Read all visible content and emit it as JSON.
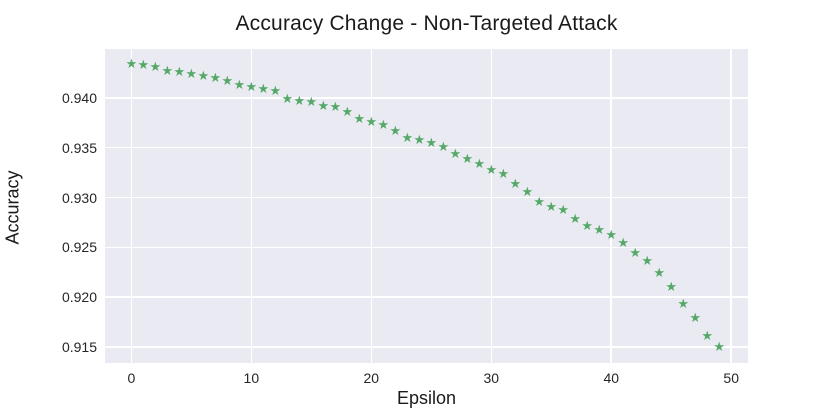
{
  "chart_data": {
    "type": "scatter",
    "title": "Accuracy Change - Non-Targeted Attack",
    "xlabel": "Epsilon",
    "ylabel": "Accuracy",
    "marker": "star",
    "marker_color": "#55a868",
    "plot_background_color": "#eaeaf2",
    "grid_color": "#ffffff",
    "grid": true,
    "legend": false,
    "xlim": [
      -2.2,
      51.4
    ],
    "ylim": [
      0.9134,
      0.9449
    ],
    "x_tick_values": [
      0,
      10,
      20,
      30,
      40,
      50
    ],
    "x_tick_labels": [
      "0",
      "10",
      "20",
      "30",
      "40",
      "50"
    ],
    "y_tick_values": [
      0.915,
      0.92,
      0.925,
      0.93,
      0.935,
      0.94
    ],
    "y_tick_labels": [
      "0.915",
      "0.920",
      "0.925",
      "0.930",
      "0.935",
      "0.940"
    ],
    "series": [
      {
        "name": "accuracy",
        "x": [
          0,
          1,
          2,
          3,
          4,
          5,
          6,
          7,
          8,
          9,
          10,
          11,
          12,
          13,
          14,
          15,
          16,
          17,
          18,
          19,
          20,
          21,
          22,
          23,
          24,
          25,
          26,
          27,
          28,
          29,
          30,
          31,
          32,
          33,
          34,
          35,
          36,
          37,
          38,
          39,
          40,
          41,
          42,
          43,
          44,
          45,
          46,
          47,
          48,
          49
        ],
        "y": [
          0.9434,
          0.9433,
          0.9431,
          0.9427,
          0.9426,
          0.9424,
          0.9422,
          0.942,
          0.9417,
          0.9413,
          0.9411,
          0.9409,
          0.9407,
          0.9399,
          0.9397,
          0.9396,
          0.9392,
          0.9391,
          0.9386,
          0.9379,
          0.9376,
          0.9373,
          0.9367,
          0.936,
          0.9358,
          0.9355,
          0.9351,
          0.9344,
          0.9339,
          0.9334,
          0.9328,
          0.9324,
          0.9314,
          0.9306,
          0.9296,
          0.929,
          0.9287,
          0.9278,
          0.9271,
          0.9267,
          0.9262,
          0.9254,
          0.9244,
          0.9236,
          0.9224,
          0.921,
          0.9193,
          0.9179,
          0.9161,
          0.915
        ]
      }
    ]
  }
}
